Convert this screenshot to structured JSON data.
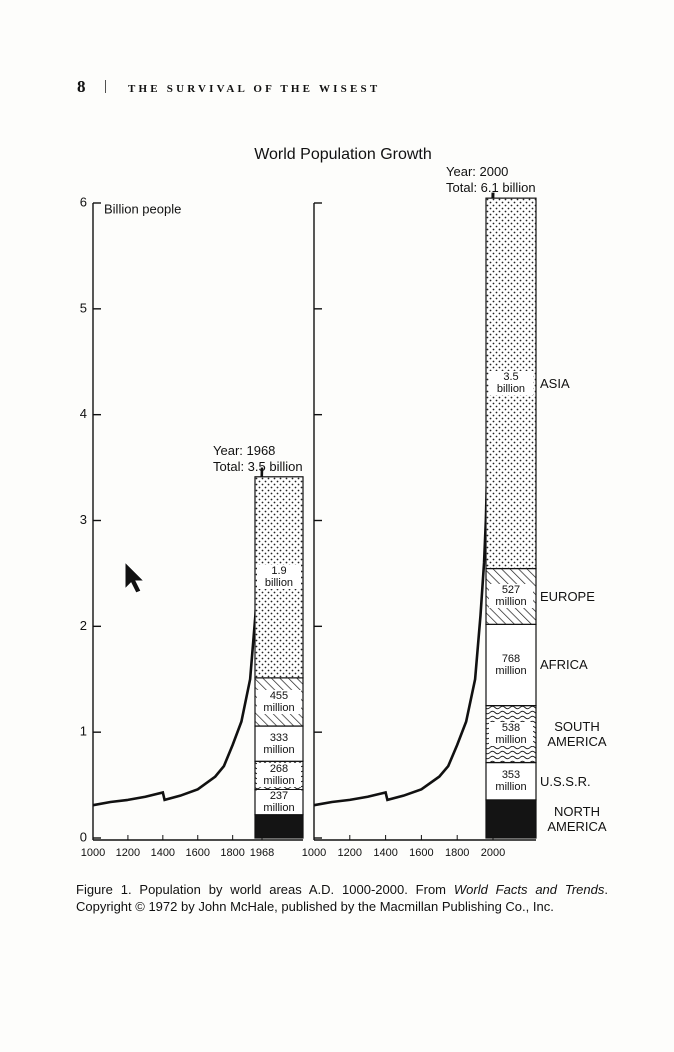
{
  "header": {
    "page_number": "8",
    "running_title": "THE SURVIVAL OF THE WISEST"
  },
  "chart_data": {
    "type": "line",
    "title": "World Population Growth",
    "y_label": "Billion people",
    "ylim": [
      0,
      6
    ],
    "yticks": [
      0,
      1,
      2,
      3,
      4,
      5,
      6
    ],
    "panels": [
      {
        "xlim": [
          1000,
          1968
        ],
        "xticks": [
          1000,
          1200,
          1400,
          1600,
          1800,
          1968
        ],
        "x": [
          1000,
          1100,
          1200,
          1300,
          1400,
          1410,
          1500,
          1600,
          1700,
          1750,
          1800,
          1850,
          1900,
          1930,
          1950,
          1960,
          1968
        ],
        "series": [
          {
            "color": "#111111",
            "style": "solid",
            "values": [
              0.31,
              0.34,
              0.36,
              0.39,
              0.43,
              0.36,
              0.4,
              0.46,
              0.58,
              0.68,
              0.88,
              1.1,
              1.5,
              2.1,
              2.6,
              3.0,
              3.5
            ]
          }
        ],
        "stack": {
          "x": 1968,
          "annotation": [
            "Year: 1968",
            "Total: 3.5 billion"
          ],
          "patterns": [
            "solid",
            "blank",
            "waves",
            "blank",
            "hatch",
            "dots"
          ],
          "values": [
            0.22,
            0.237,
            0.268,
            0.333,
            0.455,
            1.9
          ],
          "value_labels": [
            null,
            "237 million",
            "268 million",
            "333 million",
            "455 million",
            "1.9 billion"
          ]
        }
      },
      {
        "xlim": [
          1000,
          2000
        ],
        "xticks": [
          1000,
          1200,
          1400,
          1600,
          1800,
          2000
        ],
        "x": [
          1000,
          1100,
          1200,
          1300,
          1400,
          1410,
          1500,
          1600,
          1700,
          1750,
          1800,
          1850,
          1900,
          1930,
          1950,
          1960,
          1968,
          2000
        ],
        "series": [
          {
            "color": "#111111",
            "style": "solid",
            "values": [
              0.31,
              0.34,
              0.36,
              0.39,
              0.43,
              0.36,
              0.4,
              0.46,
              0.58,
              0.68,
              0.88,
              1.1,
              1.5,
              2.1,
              2.6,
              3.0,
              3.5,
              null
            ]
          },
          {
            "color": "#111111",
            "style": "dashed",
            "values": [
              null,
              null,
              null,
              null,
              null,
              null,
              null,
              null,
              null,
              null,
              null,
              null,
              null,
              null,
              null,
              null,
              3.5,
              6.1
            ]
          }
        ],
        "stack": {
          "x": 2000,
          "annotation": [
            "Year: 2000",
            "Total: 6.1 billion"
          ],
          "patterns": [
            "solid",
            "blank",
            "waves",
            "blank",
            "hatch",
            "dots"
          ],
          "categories": [
            "NORTH AMERICA",
            "U.S.S.R.",
            "SOUTH AMERICA",
            "AFRICA",
            "EUROPE",
            "ASIA"
          ],
          "values": [
            0.36,
            0.353,
            0.538,
            0.768,
            0.527,
            3.5
          ],
          "value_labels": [
            null,
            "353 million",
            "538 million",
            "768 million",
            "527 million",
            "3.5 billion"
          ]
        }
      }
    ]
  },
  "caption": [
    "Figure 1. Population by world areas A.D. 1000-2000. From ",
    "World Facts and Trends",
    ". Copyright © 1972 by John McHale, published by the Macmillan Publishing Co., Inc."
  ]
}
